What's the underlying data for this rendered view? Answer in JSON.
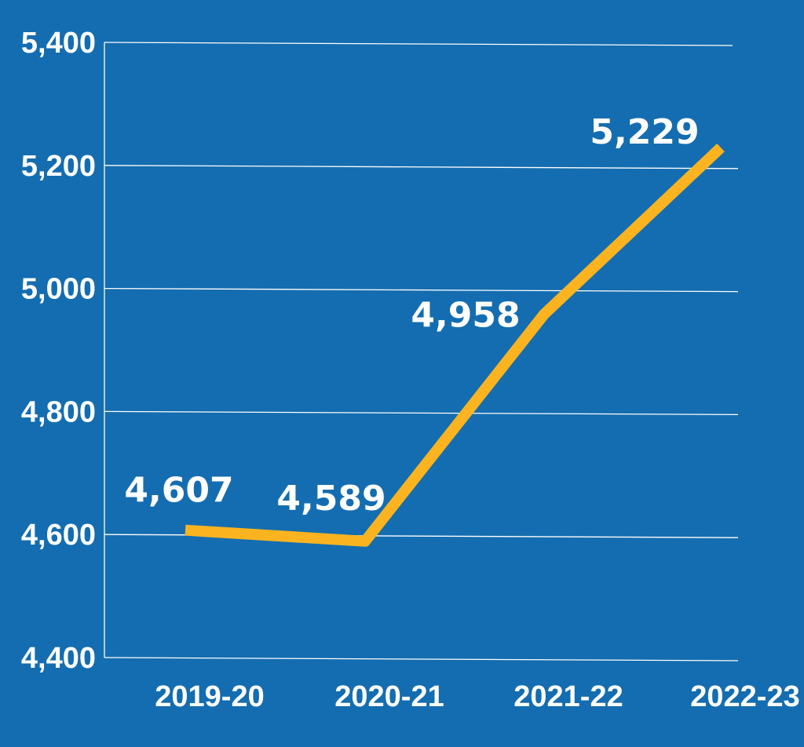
{
  "chart_data": {
    "type": "line",
    "title": "",
    "xlabel": "",
    "ylabel": "",
    "categories": [
      "2019-20",
      "2020-21",
      "2021-22",
      "2022-23"
    ],
    "series": [
      {
        "values": [
          4607,
          4589,
          4958,
          5229
        ]
      }
    ],
    "data_labels": [
      "4,607",
      "4,589",
      "4,958",
      "5,229"
    ],
    "ylim": [
      4400,
      5400
    ],
    "yticks": [
      4400,
      4600,
      4800,
      5000,
      5200,
      5400
    ],
    "ytick_labels": [
      "4,400",
      "4,600",
      "4,800",
      "5,000",
      "5,200",
      "5,400"
    ],
    "grid": true,
    "legend": "none",
    "colors": {
      "background": "#146db0",
      "line": "#fbb41f",
      "text": "#ffffff",
      "grid": "#ffffff"
    }
  }
}
